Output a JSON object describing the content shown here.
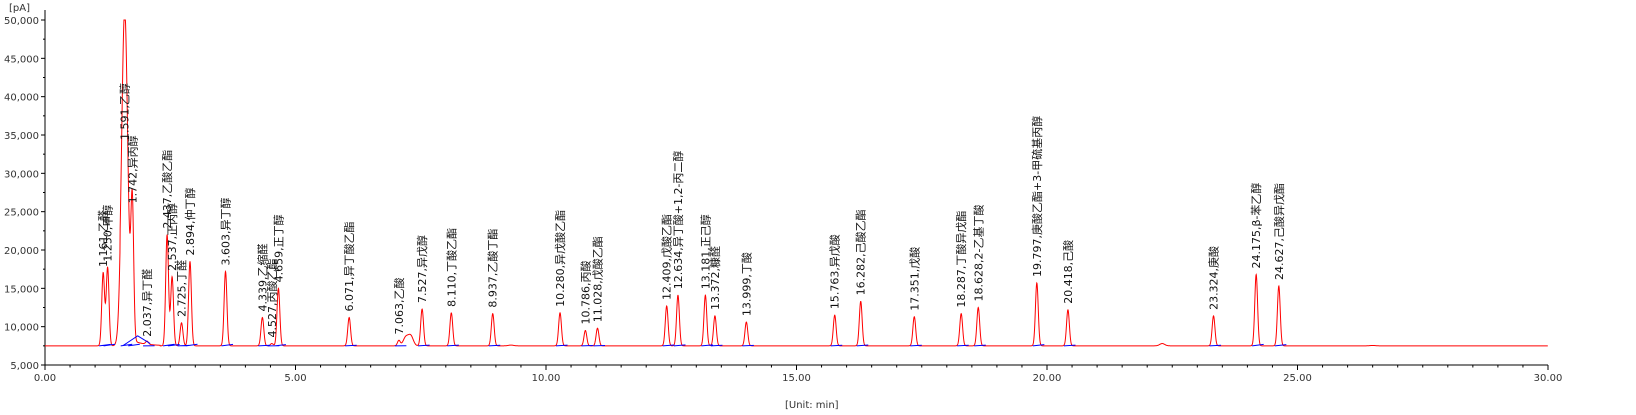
{
  "chart_data": {
    "type": "line",
    "y_unit": "[pA]",
    "x_unit": "[Unit: min]",
    "xlim": [
      0,
      30
    ],
    "ylim": [
      5000,
      50000
    ],
    "x_ticks": [
      "0.00",
      "5.00",
      "10.00",
      "15.00",
      "20.00",
      "25.00",
      "30.00"
    ],
    "y_ticks": [
      "5,000",
      "10,000",
      "15,000",
      "20,000",
      "25,000",
      "30,000",
      "35,000",
      "40,000",
      "45,000",
      "50,000"
    ],
    "x_tick_values": [
      0,
      5,
      10,
      15,
      20,
      25,
      30
    ],
    "y_tick_values": [
      5000,
      10000,
      15000,
      20000,
      25000,
      30000,
      35000,
      40000,
      45000,
      50000
    ],
    "baseline": 7500,
    "colors": {
      "signal": "#ff0000",
      "reference": "#0000ff",
      "axis": "#000000",
      "text": "#333333"
    },
    "peaks": [
      {
        "rt": 1.161,
        "height": 17000,
        "label": "1.161,乙醛"
      },
      {
        "rt": 1.25,
        "height": 17700,
        "label": "1.250,甲醇"
      },
      {
        "rt": 1.591,
        "height": 50000,
        "label": "1.591,乙醇"
      },
      {
        "rt": 1.742,
        "height": 25300,
        "label": "1.742,异丙醇"
      },
      {
        "rt": 2.037,
        "height": 7900,
        "label": "2.037,异丁醛"
      },
      {
        "rt": 2.437,
        "height": 22000,
        "label": "2.437,乙酸乙酯"
      },
      {
        "rt": 2.537,
        "height": 16500,
        "label": "2.537,正丙醇"
      },
      {
        "rt": 2.725,
        "height": 10500,
        "label": "2.725,丁醛"
      },
      {
        "rt": 2.894,
        "height": 18500,
        "label": "2.894,仲丁醇"
      },
      {
        "rt": 3.603,
        "height": 17200,
        "label": "3.603,异丁醇"
      },
      {
        "rt": 4.339,
        "height": 11200,
        "label": "4.339,乙缩醛"
      },
      {
        "rt": 4.527,
        "height": 7800,
        "label": "4.527,丙酸乙酯"
      },
      {
        "rt": 4.659,
        "height": 15000,
        "label": "4.659,正丁醇"
      },
      {
        "rt": 6.071,
        "height": 11200,
        "label": "6.071,异丁酸乙酯"
      },
      {
        "rt": 7.063,
        "height": 8200,
        "label": "7.063,乙酸"
      },
      {
        "rt": 7.527,
        "height": 12300,
        "label": "7.527,异戊醇"
      },
      {
        "rt": 8.11,
        "height": 11800,
        "label": "8.110,丁酸乙酯"
      },
      {
        "rt": 8.937,
        "height": 11700,
        "label": "8.937,乙酸丁酯"
      },
      {
        "rt": 10.28,
        "height": 11800,
        "label": "10.280,异戊酸乙酯"
      },
      {
        "rt": 10.786,
        "height": 9500,
        "label": "10.786,丙酸"
      },
      {
        "rt": 11.028,
        "height": 9800,
        "label": "11.028,戊酸乙酯"
      },
      {
        "rt": 12.409,
        "height": 12700,
        "label": "12.409,戊酸乙酯"
      },
      {
        "rt": 12.634,
        "height": 14100,
        "label": "12.634,异丁酸+1,2-丙二醇"
      },
      {
        "rt": 13.181,
        "height": 14100,
        "label": "13.181,正己醇"
      },
      {
        "rt": 13.372,
        "height": 11400,
        "label": "13.372,糠醛"
      },
      {
        "rt": 13.999,
        "height": 10600,
        "label": "13.999,丁酸"
      },
      {
        "rt": 15.763,
        "height": 11500,
        "label": "15.763,异戊酸"
      },
      {
        "rt": 16.282,
        "height": 13300,
        "label": "16.282,己酸乙酯"
      },
      {
        "rt": 17.351,
        "height": 11300,
        "label": "17.351,戊酸"
      },
      {
        "rt": 18.287,
        "height": 11700,
        "label": "18.287,丁酸异戊酯"
      },
      {
        "rt": 18.628,
        "height": 12500,
        "label": "18.628,2-乙基丁酸"
      },
      {
        "rt": 19.797,
        "height": 15700,
        "label": "19.797,庚酸乙酯+3-甲硫基丙醇"
      },
      {
        "rt": 20.418,
        "height": 12200,
        "label": "20.418,己酸"
      },
      {
        "rt": 23.324,
        "height": 11400,
        "label": "23.324,庚酸"
      },
      {
        "rt": 24.175,
        "height": 16800,
        "label": "24.175,β-苯乙醇"
      },
      {
        "rt": 24.627,
        "height": 15300,
        "label": "24.627,己酸异戊酯"
      }
    ],
    "minor_peaks": [
      {
        "rt": 7.2,
        "height": 8600
      },
      {
        "rt": 7.3,
        "height": 8800
      },
      {
        "rt": 22.3,
        "height": 7800
      },
      {
        "rt": 9.3,
        "height": 7600
      },
      {
        "rt": 26.5,
        "height": 7550
      }
    ]
  }
}
